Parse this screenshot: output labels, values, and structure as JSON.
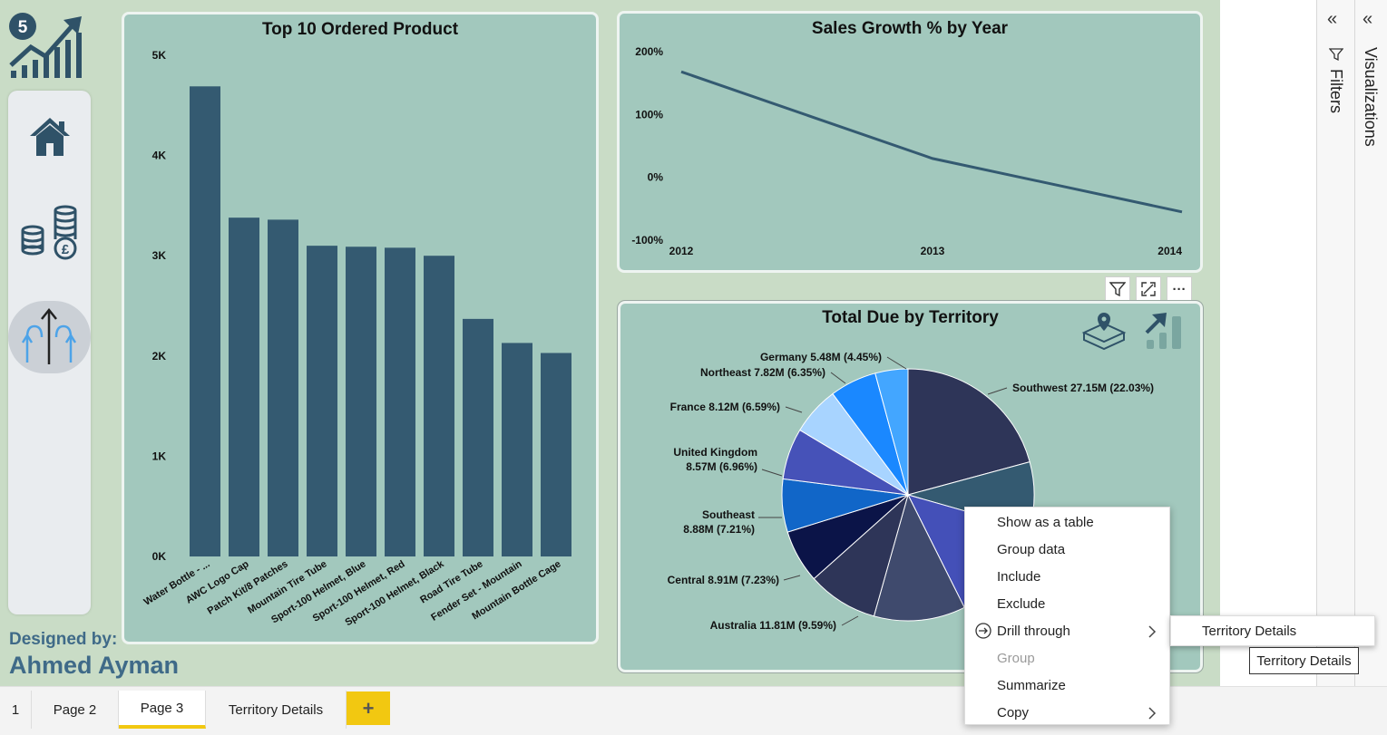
{
  "nav": {
    "logo_badge": "5",
    "home_icon": "home-icon",
    "finance_icon": "coins-pound-icon",
    "growth_icon": "arrows-up-icon"
  },
  "designer": {
    "label": "Designed by:",
    "name": "Ahmed Ayman"
  },
  "bar_chart": {
    "title": "Top 10 Ordered Product",
    "y_ticks": [
      "5K",
      "4K",
      "3K",
      "2K",
      "1K",
      "0K"
    ],
    "color": "#345a71"
  },
  "line_chart": {
    "title": "Sales Growth % by Year",
    "y_ticks": [
      "200%",
      "100%",
      "0%",
      "-100%"
    ],
    "x_ticks": [
      "2012",
      "2013",
      "2014"
    ],
    "color": "#345a71"
  },
  "pie_chart": {
    "title": "Total Due by Territory",
    "labels": [
      [
        "Southwest 27.15M (22.03%)"
      ],
      [
        "Germany 5.48M (4.45%)"
      ],
      [
        "Northeast 7.82M (6.35%)"
      ],
      [
        "France 8.12M (6.59%)"
      ],
      [
        "United Kingdom",
        "8.57M (6.96%)"
      ],
      [
        "Southeast",
        "8.88M (7.21%)"
      ],
      [
        "Central 8.91M (7.23%)"
      ],
      [
        "Australia 11.81M (9.59%)"
      ]
    ]
  },
  "chart_data": [
    {
      "type": "bar",
      "title": "Top 10 Ordered Product",
      "categories": [
        "Water Bottle - ...",
        "AWC Logo Cap",
        "Patch Kit/8 Patches",
        "Mountain Tire Tube",
        "Sport-100 Helmet, Blue",
        "Sport-100 Helmet, Red",
        "Sport-100 Helmet, Black",
        "Road Tire Tube",
        "Fender Set - Mountain",
        "Mountain Bottle Cage"
      ],
      "values": [
        4690,
        3380,
        3360,
        3100,
        3090,
        3080,
        3000,
        2370,
        2130,
        2030
      ],
      "ylim": [
        0,
        5000
      ],
      "xlabel": "",
      "ylabel": ""
    },
    {
      "type": "line",
      "title": "Sales Growth % by Year",
      "x": [
        "2012",
        "2013",
        "2014"
      ],
      "values": [
        168,
        30,
        -55
      ],
      "ylim": [
        -100,
        200
      ],
      "xlabel": "",
      "ylabel": ""
    },
    {
      "type": "pie",
      "title": "Total Due by Territory",
      "slices": [
        {
          "name": "Southwest",
          "value": 27.15,
          "percent": 22.03,
          "color": "#2e3558"
        },
        {
          "name": "",
          "value": 0,
          "percent": 9.15,
          "color": "#345a71"
        },
        {
          "name": "",
          "value": 0,
          "percent": 14.0,
          "color": "#4450b8"
        },
        {
          "name": "",
          "value": 0,
          "percent": 12.44,
          "color": "#3f4a6d"
        },
        {
          "name": "Australia",
          "value": 11.81,
          "percent": 9.59,
          "color": "#2e3558"
        },
        {
          "name": "Central",
          "value": 8.91,
          "percent": 7.23,
          "color": "#0b1448"
        },
        {
          "name": "Southeast",
          "value": 8.88,
          "percent": 7.21,
          "color": "#1166c8"
        },
        {
          "name": "United Kingdom",
          "value": 8.57,
          "percent": 6.96,
          "color": "#4652b8"
        },
        {
          "name": "France",
          "value": 8.12,
          "percent": 6.59,
          "color": "#a8d4ff"
        },
        {
          "name": "Northeast",
          "value": 7.82,
          "percent": 6.35,
          "color": "#1a88ff"
        },
        {
          "name": "Germany",
          "value": 5.48,
          "percent": 4.45,
          "color": "#43a6ff"
        }
      ]
    }
  ],
  "visual_header": {
    "filter_icon": "filter-icon",
    "focus_icon": "focus-mode-icon",
    "more_label": "···"
  },
  "context_menu": {
    "items": [
      {
        "label": "Show as a table",
        "disabled": false
      },
      {
        "label": "Group data",
        "disabled": false
      },
      {
        "label": "Include",
        "disabled": false
      },
      {
        "label": "Exclude",
        "disabled": false
      },
      {
        "label": "Drill through",
        "disabled": false
      },
      {
        "label": "Group",
        "disabled": true
      },
      {
        "label": "Summarize",
        "disabled": false
      },
      {
        "label": "Copy",
        "disabled": false
      }
    ],
    "submenu_item": "Territory Details",
    "tooltip": "Territory Details"
  },
  "panes": {
    "filters": "Filters",
    "visualizations": "Visualizations",
    "collapse": "«"
  },
  "tabs": [
    {
      "label": "1",
      "active": false
    },
    {
      "label": "Page 2",
      "active": false
    },
    {
      "label": "Page 3",
      "active": true
    },
    {
      "label": "Territory Details",
      "active": false
    }
  ],
  "add_tab_label": "+"
}
